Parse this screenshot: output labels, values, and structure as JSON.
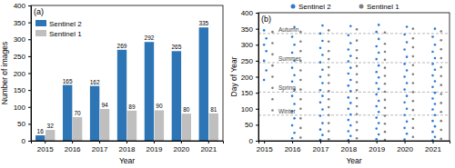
{
  "chart_data": [
    {
      "type": "bar",
      "title": "(a)",
      "x_label": "Year",
      "y_label": "Number of images",
      "categories": [
        "2015",
        "2016",
        "2017",
        "2018",
        "2019",
        "2020",
        "2021"
      ],
      "series": [
        {
          "name": "Sentinel 2",
          "color": "#2e75b6",
          "values": [
            16,
            165,
            162,
            269,
            292,
            265,
            335
          ]
        },
        {
          "name": "Sentinel 1",
          "color": "#bfbfbf",
          "values": [
            32,
            70,
            94,
            89,
            90,
            80,
            81
          ]
        }
      ],
      "ylim": [
        0,
        400
      ],
      "yticks": [
        0,
        50,
        100,
        150,
        200,
        250,
        300,
        350,
        400
      ],
      "data_labels": true,
      "legend": "upper left"
    },
    {
      "type": "scatter",
      "title": "(b)",
      "x_label": "Year",
      "y_label": "Day of Year",
      "series": [
        {
          "name": "Sentinel 2",
          "color": "#2b7bd6",
          "marker": "circle",
          "x": [
            2015,
            2015.08,
            2015,
            2015.08,
            2015,
            2015.08,
            2015,
            2016,
            2016.08,
            2016,
            2016.08,
            2016,
            2016.08,
            2016,
            2016.08,
            2016,
            2016.08,
            2016,
            2016.08,
            2016,
            2016.08,
            2016,
            2016.08,
            2017,
            2017.08,
            2017,
            2017.08,
            2017,
            2017.08,
            2017,
            2017.08,
            2017,
            2017.08,
            2017,
            2017.08,
            2017,
            2017.08,
            2017,
            2017.08,
            2017,
            2017.08,
            2018,
            2018.08,
            2018,
            2018.08,
            2018,
            2018.08,
            2018,
            2018.08,
            2018,
            2018.08,
            2018,
            2018.08,
            2018,
            2018.08,
            2018,
            2018.08,
            2018,
            2018.08,
            2018,
            2018.08,
            2019,
            2019.08,
            2019,
            2019.08,
            2019,
            2019.08,
            2019,
            2019.08,
            2019,
            2019.08,
            2019,
            2019.08,
            2019,
            2019.08,
            2019,
            2019.08,
            2019,
            2019.08,
            2019,
            2019.08,
            2020,
            2020.08,
            2020,
            2020.08,
            2020,
            2020.08,
            2020,
            2020.08,
            2020,
            2020.08,
            2020,
            2020.08,
            2020,
            2020.08,
            2020,
            2020.08,
            2020,
            2020.08,
            2021,
            2021.08,
            2021,
            2021.08,
            2021,
            2021.08,
            2021,
            2021.08,
            2021,
            2021.08,
            2021,
            2021.08,
            2021,
            2021.08,
            2021,
            2021.08,
            2021,
            2021.08,
            2021,
            2021.08
          ],
          "values": [
            190,
            220,
            250,
            280,
            300,
            320,
            345,
            8,
            25,
            48,
            70,
            92,
            115,
            140,
            160,
            185,
            205,
            228,
            250,
            275,
            300,
            325,
            355,
            3,
            18,
            35,
            55,
            78,
            98,
            120,
            140,
            158,
            180,
            200,
            222,
            245,
            268,
            290,
            312,
            335,
            360,
            2,
            15,
            30,
            48,
            65,
            82,
            100,
            118,
            135,
            155,
            172,
            190,
            210,
            228,
            248,
            265,
            285,
            305,
            330,
            358,
            5,
            20,
            38,
            55,
            72,
            90,
            108,
            125,
            145,
            162,
            180,
            198,
            215,
            235,
            255,
            275,
            295,
            318,
            340,
            362,
            4,
            22,
            40,
            60,
            80,
            100,
            120,
            140,
            160,
            180,
            200,
            220,
            240,
            262,
            285,
            308,
            332,
            356,
            1,
            12,
            28,
            45,
            62,
            80,
            98,
            115,
            132,
            150,
            168,
            186,
            204,
            222,
            240,
            258,
            278,
            300,
            325,
            350
          ]
        },
        {
          "name": "Sentinel 1",
          "color": "#7f7f7f",
          "marker": "circle",
          "x": [
            2015.3,
            2015.3,
            2015.3,
            2015.3,
            2015.3,
            2015.3,
            2015.3,
            2015.3,
            2016.3,
            2016.3,
            2016.3,
            2016.3,
            2016.3,
            2016.3,
            2016.3,
            2016.3,
            2016.3,
            2016.3,
            2016.3,
            2016.3,
            2017.3,
            2017.3,
            2017.3,
            2017.3,
            2017.3,
            2017.3,
            2017.3,
            2017.3,
            2017.3,
            2017.3,
            2017.3,
            2017.3,
            2017.3,
            2017.3,
            2018.3,
            2018.3,
            2018.3,
            2018.3,
            2018.3,
            2018.3,
            2018.3,
            2018.3,
            2018.3,
            2018.3,
            2018.3,
            2018.3,
            2018.3,
            2018.3,
            2019.3,
            2019.3,
            2019.3,
            2019.3,
            2019.3,
            2019.3,
            2019.3,
            2019.3,
            2019.3,
            2019.3,
            2019.3,
            2019.3,
            2019.3,
            2019.3,
            2020.3,
            2020.3,
            2020.3,
            2020.3,
            2020.3,
            2020.3,
            2020.3,
            2020.3,
            2020.3,
            2020.3,
            2020.3,
            2020.3,
            2020.3,
            2021.3,
            2021.3,
            2021.3,
            2021.3,
            2021.3,
            2021.3,
            2021.3,
            2021.3,
            2021.3,
            2021.3,
            2021.3,
            2021.3,
            2021.3
          ],
          "values": [
            95,
            130,
            165,
            200,
            235,
            270,
            305,
            340,
            10,
            40,
            70,
            100,
            130,
            160,
            190,
            220,
            250,
            280,
            310,
            340,
            5,
            30,
            55,
            80,
            105,
            130,
            155,
            180,
            205,
            230,
            255,
            280,
            310,
            345,
            8,
            33,
            58,
            83,
            108,
            133,
            158,
            183,
            208,
            233,
            258,
            283,
            313,
            348,
            3,
            28,
            53,
            78,
            103,
            128,
            153,
            178,
            203,
            228,
            253,
            278,
            303,
            338,
            12,
            40,
            68,
            96,
            124,
            152,
            180,
            208,
            236,
            264,
            292,
            320,
            350,
            6,
            34,
            62,
            90,
            118,
            146,
            174,
            202,
            230,
            258,
            286,
            314,
            342
          ]
        }
      ],
      "xlim": [
        2014.8,
        2021.6
      ],
      "xticks": [
        2015,
        2016,
        2017,
        2018,
        2019,
        2020,
        2021
      ],
      "ylim": [
        0,
        400
      ],
      "yticks": [
        0,
        50,
        100,
        150,
        200,
        250,
        300,
        350,
        400
      ],
      "legend": "upper center",
      "annotations": [
        {
          "text": "Winter",
          "y": 80
        },
        {
          "text": "Spring",
          "y": 152
        },
        {
          "text": "Summer",
          "y": 244
        },
        {
          "text": "Autumn",
          "y": 335
        }
      ]
    }
  ]
}
